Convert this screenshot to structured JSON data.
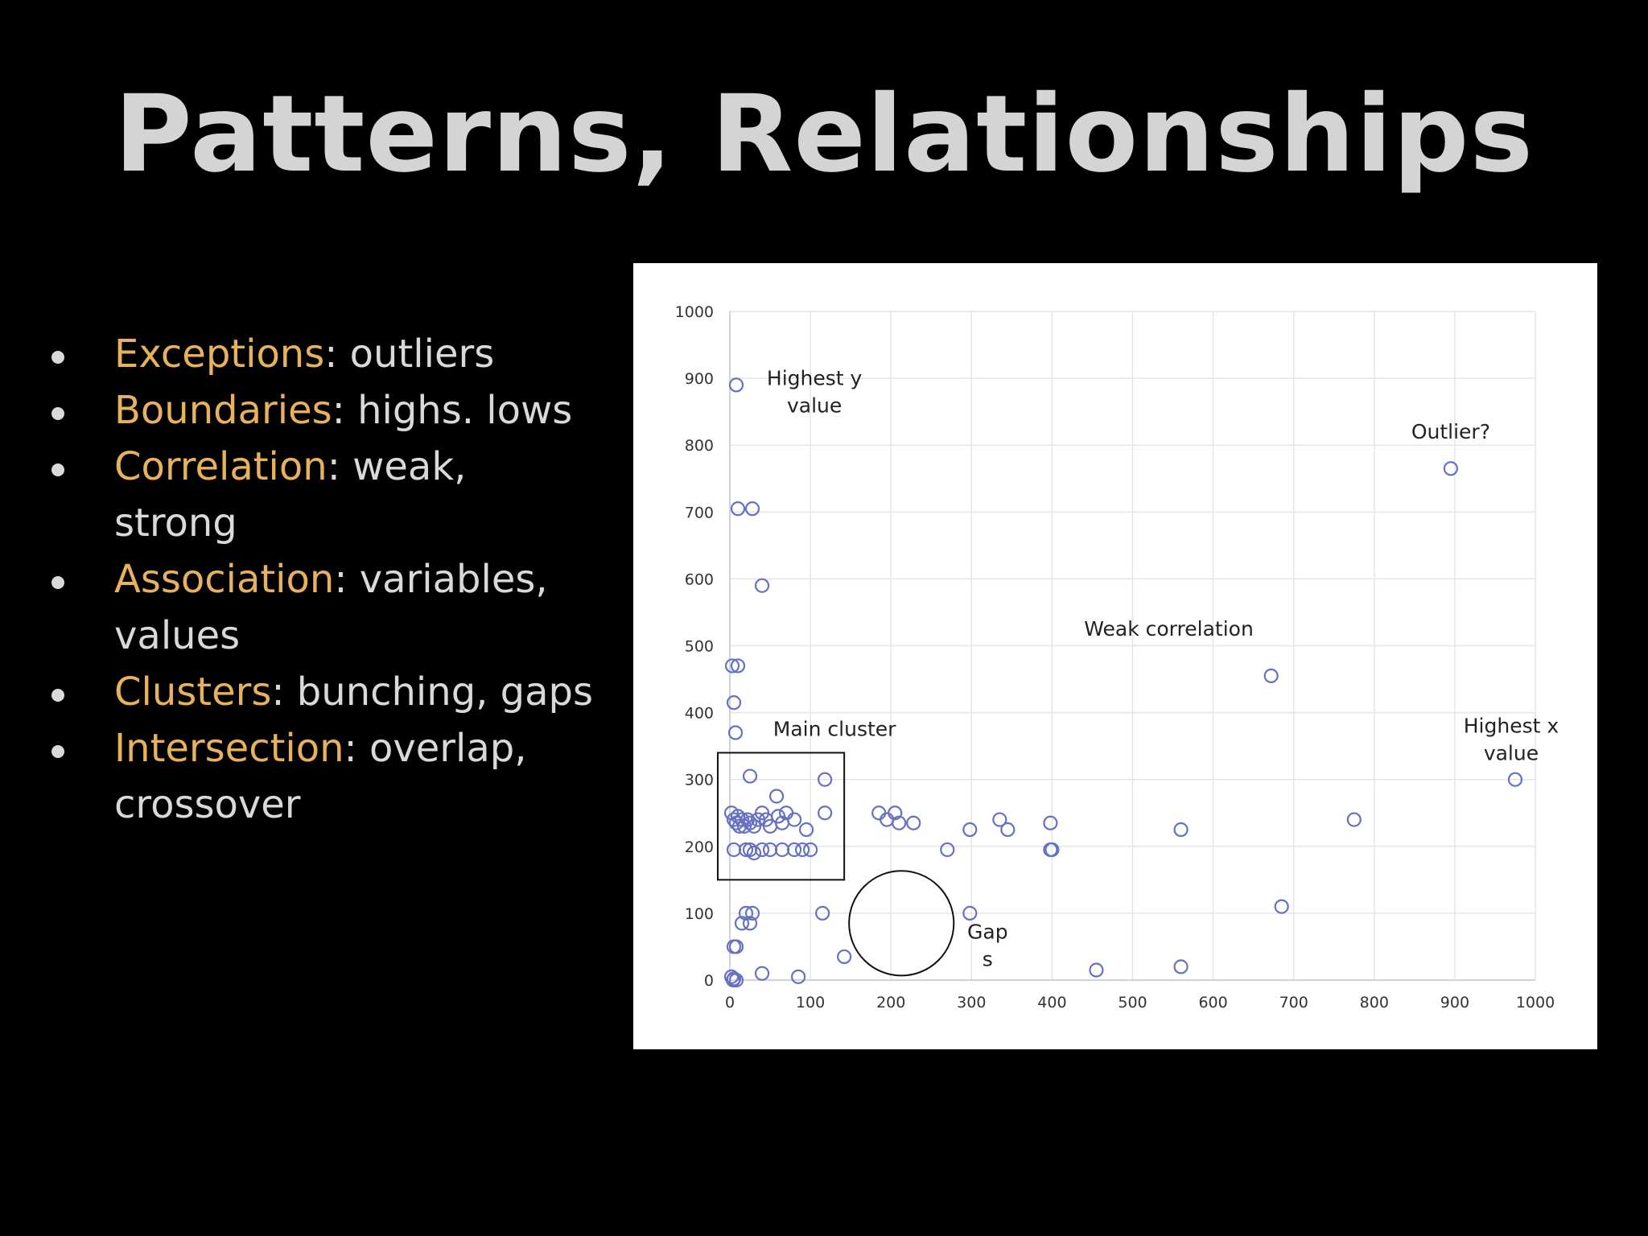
{
  "slide": {
    "title": "Patterns, Relationships",
    "bullets": [
      {
        "term": "Exceptions",
        "sep": ":",
        "text": " outliers"
      },
      {
        "term": "Boundaries",
        "sep": ":",
        "text": " highs. lows"
      },
      {
        "term": "Correlation",
        "sep": ":",
        "text": " weak, strong"
      },
      {
        "term": "Association",
        "sep": ":",
        "text": " variables, values"
      },
      {
        "term": "Clusters",
        "sep": ":",
        "text": " bunching, gaps"
      },
      {
        "term": "Intersection",
        "sep": ":",
        "text": " overlap, crossover"
      }
    ],
    "colors": {
      "title": "#d4d4d4",
      "term": "#e8b15c",
      "text": "#d9d9d9",
      "marker": "#6671c4"
    }
  },
  "chart_data": {
    "type": "scatter",
    "title": "",
    "xlabel": "",
    "ylabel": "",
    "xlim": [
      0,
      1000
    ],
    "ylim": [
      0,
      1000
    ],
    "grid": true,
    "x_ticks": [
      "0",
      "100",
      "200",
      "300",
      "400",
      "500",
      "600",
      "700",
      "800",
      "900",
      "1000"
    ],
    "y_ticks": [
      "0",
      "100",
      "200",
      "300",
      "400",
      "500",
      "600",
      "700",
      "800",
      "900",
      "1000"
    ],
    "marker": "hollow-circle",
    "series": [
      {
        "points": [
          [
            8,
            890
          ],
          [
            10,
            705
          ],
          [
            28,
            705
          ],
          [
            40,
            590
          ],
          [
            3,
            470
          ],
          [
            10,
            470
          ],
          [
            5,
            415
          ],
          [
            7,
            370
          ],
          [
            25,
            305
          ],
          [
            118,
            300
          ],
          [
            58,
            275
          ],
          [
            2,
            250
          ],
          [
            5,
            240
          ],
          [
            8,
            235
          ],
          [
            10,
            245
          ],
          [
            12,
            230
          ],
          [
            15,
            240
          ],
          [
            18,
            230
          ],
          [
            22,
            240
          ],
          [
            25,
            235
          ],
          [
            30,
            230
          ],
          [
            35,
            240
          ],
          [
            40,
            250
          ],
          [
            45,
            240
          ],
          [
            50,
            230
          ],
          [
            60,
            245
          ],
          [
            65,
            235
          ],
          [
            70,
            250
          ],
          [
            80,
            240
          ],
          [
            95,
            225
          ],
          [
            118,
            250
          ],
          [
            5,
            195
          ],
          [
            20,
            195
          ],
          [
            25,
            195
          ],
          [
            30,
            190
          ],
          [
            40,
            195
          ],
          [
            50,
            195
          ],
          [
            65,
            195
          ],
          [
            80,
            195
          ],
          [
            90,
            195
          ],
          [
            100,
            195
          ],
          [
            185,
            250
          ],
          [
            195,
            240
          ],
          [
            205,
            250
          ],
          [
            210,
            235
          ],
          [
            228,
            235
          ],
          [
            298,
            225
          ],
          [
            335,
            240
          ],
          [
            345,
            225
          ],
          [
            398,
            235
          ],
          [
            398,
            195
          ],
          [
            400,
            195
          ],
          [
            270,
            195
          ],
          [
            560,
            225
          ],
          [
            672,
            455
          ],
          [
            775,
            240
          ],
          [
            975,
            300
          ],
          [
            895,
            765
          ],
          [
            20,
            100
          ],
          [
            28,
            100
          ],
          [
            15,
            85
          ],
          [
            25,
            85
          ],
          [
            115,
            100
          ],
          [
            298,
            100
          ],
          [
            685,
            110
          ],
          [
            5,
            50
          ],
          [
            8,
            50
          ],
          [
            142,
            35
          ],
          [
            40,
            10
          ],
          [
            85,
            5
          ],
          [
            455,
            15
          ],
          [
            560,
            20
          ],
          [
            2,
            5
          ],
          [
            4,
            0
          ],
          [
            8,
            0
          ],
          [
            5,
            2
          ]
        ]
      }
    ],
    "annotations": [
      {
        "text": [
          "Highest y",
          "value"
        ],
        "x": 105,
        "y": 890
      },
      {
        "text": [
          "Outlier?"
        ],
        "x": 895,
        "y": 810
      },
      {
        "text": [
          "Weak correlation"
        ],
        "x": 545,
        "y": 515
      },
      {
        "text": [
          "Main cluster"
        ],
        "x": 130,
        "y": 365
      },
      {
        "text": [
          "Highest x",
          "value"
        ],
        "x": 970,
        "y": 370
      },
      {
        "text": [
          "Gap",
          "s"
        ],
        "x": 320,
        "y": 62
      }
    ],
    "cluster_box": {
      "x": [
        -15,
        142
      ],
      "y": [
        150,
        340
      ]
    },
    "gap_circle": {
      "cx": 213,
      "cy": 85,
      "r": 65
    }
  }
}
